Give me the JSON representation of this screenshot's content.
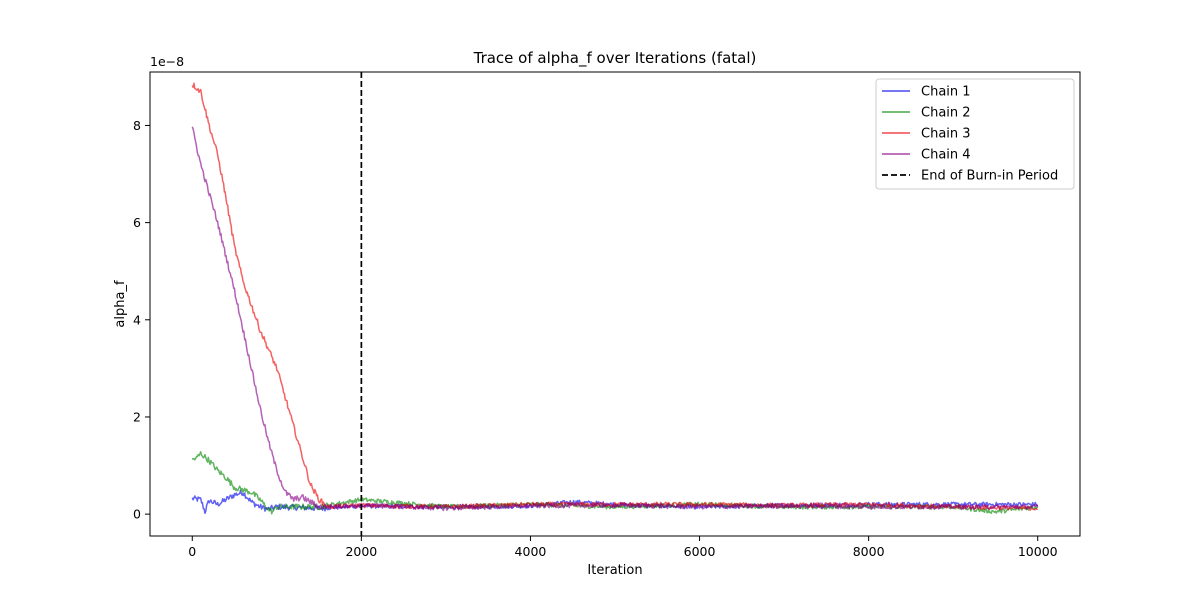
{
  "chart_data": {
    "type": "line",
    "title": "Trace of alpha_f over Iterations (fatal)",
    "xlabel": "Iteration",
    "ylabel": "alpha_f",
    "y_offset_label": "1e−8",
    "y_scale_factor": 1e-08,
    "xlim": [
      -500,
      10500
    ],
    "ylim": [
      -0.45,
      9.1
    ],
    "xticks": [
      0,
      2000,
      4000,
      6000,
      8000,
      10000
    ],
    "xtick_labels": [
      "0",
      "2000",
      "4000",
      "6000",
      "8000",
      "10000"
    ],
    "yticks": [
      0,
      2,
      4,
      6,
      8
    ],
    "ytick_labels": [
      "0",
      "2",
      "4",
      "6",
      "8"
    ],
    "grid": false,
    "legend_position": "top-right",
    "series": [
      {
        "name": "Chain 1",
        "color": "#0000ee",
        "x": [
          0,
          100,
          150,
          200,
          300,
          400,
          500,
          600,
          700,
          800,
          900,
          1000,
          1200,
          1500,
          2000,
          3000,
          4000,
          4500,
          5000,
          6000,
          7000,
          8000,
          9000,
          10000
        ],
        "y": [
          0.32,
          0.3,
          0.05,
          0.28,
          0.2,
          0.3,
          0.4,
          0.45,
          0.25,
          0.15,
          0.1,
          0.15,
          0.14,
          0.12,
          0.17,
          0.15,
          0.17,
          0.25,
          0.2,
          0.15,
          0.18,
          0.2,
          0.2,
          0.2
        ]
      },
      {
        "name": "Chain 2",
        "color": "#008800",
        "x": [
          0,
          50,
          100,
          200,
          300,
          400,
          500,
          600,
          700,
          800,
          900,
          950,
          1000,
          1200,
          1500,
          2000,
          3000,
          4000,
          5000,
          6000,
          7000,
          8000,
          9000,
          9500,
          10000
        ],
        "y": [
          1.12,
          1.15,
          1.25,
          1.1,
          0.9,
          0.75,
          0.55,
          0.5,
          0.45,
          0.3,
          0.1,
          0.05,
          0.15,
          0.15,
          0.15,
          0.3,
          0.15,
          0.2,
          0.15,
          0.2,
          0.15,
          0.15,
          0.15,
          0.05,
          0.15
        ]
      },
      {
        "name": "Chain 3",
        "color": "#ee0000",
        "x": [
          0,
          100,
          200,
          300,
          400,
          500,
          600,
          700,
          800,
          900,
          1000,
          1100,
          1200,
          1300,
          1400,
          1500,
          1600,
          2000,
          3000,
          4000,
          5000,
          6000,
          7000,
          8000,
          9000,
          10000
        ],
        "y": [
          8.85,
          8.7,
          8.0,
          7.4,
          6.5,
          5.5,
          4.8,
          4.3,
          3.8,
          3.4,
          3.0,
          2.4,
          1.8,
          1.2,
          0.6,
          0.3,
          0.15,
          0.18,
          0.15,
          0.2,
          0.2,
          0.2,
          0.18,
          0.2,
          0.15,
          0.12
        ]
      },
      {
        "name": "Chain 4",
        "color": "#880088",
        "x": [
          0,
          100,
          200,
          300,
          400,
          500,
          600,
          700,
          800,
          900,
          1000,
          1100,
          1200,
          1300,
          1500,
          2000,
          3000,
          4000,
          5000,
          6000,
          7000,
          8000,
          9000,
          10000
        ],
        "y": [
          7.95,
          7.2,
          6.6,
          6.0,
          5.3,
          4.6,
          3.8,
          3.0,
          2.2,
          1.5,
          0.9,
          0.45,
          0.3,
          0.35,
          0.15,
          0.18,
          0.12,
          0.17,
          0.18,
          0.15,
          0.17,
          0.15,
          0.15,
          0.15
        ]
      }
    ],
    "vline": {
      "x": 2000,
      "label": "End of Burn-in Period",
      "color": "#000000",
      "style": "dashed"
    }
  }
}
